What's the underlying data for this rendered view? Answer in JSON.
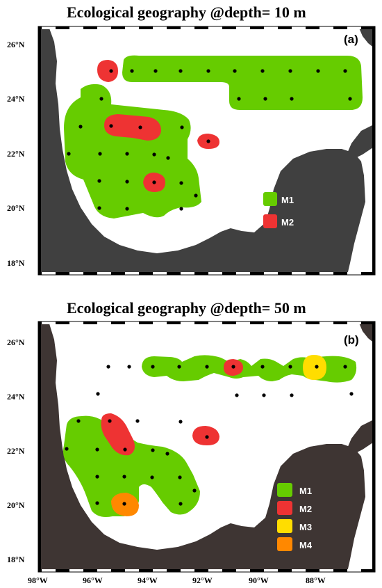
{
  "figure": {
    "panels": [
      {
        "id": "a",
        "title": "Ecological geography @depth= 10 m",
        "panel_label": "(a)",
        "lat_ticks": [
          "26°N",
          "24°N",
          "22°N",
          "20°N",
          "18°N"
        ],
        "lon_ticks": [],
        "legend": [
          {
            "label": "M1",
            "color": "#66cc00"
          },
          {
            "label": "M2",
            "color": "#ee3333"
          }
        ]
      },
      {
        "id": "b",
        "title": "Ecological geography @depth= 50 m",
        "panel_label": "(b)",
        "lat_ticks": [
          "26°N",
          "24°N",
          "22°N",
          "20°N",
          "18°N"
        ],
        "lon_ticks": [
          "98°W",
          "96°W",
          "94°W",
          "92°W",
          "90°W",
          "88°W"
        ],
        "legend": [
          {
            "label": "M1",
            "color": "#66cc00"
          },
          {
            "label": "M2",
            "color": "#ee3333"
          },
          {
            "label": "M3",
            "color": "#ffdd00"
          },
          {
            "label": "M4",
            "color": "#ff8800"
          }
        ]
      }
    ],
    "colors": {
      "land_panel_a": "#404040",
      "land_panel_b": "#3e3533",
      "water": "#ffffff",
      "station": "#000000"
    }
  },
  "map_data": {
    "stations": [
      {
        "lon": -95.7,
        "lat": 25.0
      },
      {
        "lon": -94.8,
        "lat": 25.0
      },
      {
        "lon": -93.9,
        "lat": 25.0
      },
      {
        "lon": -92.9,
        "lat": 25.0
      },
      {
        "lon": -92.0,
        "lat": 25.0
      },
      {
        "lon": -91.0,
        "lat": 25.0
      },
      {
        "lon": -90.0,
        "lat": 25.0
      },
      {
        "lon": -89.0,
        "lat": 25.0
      },
      {
        "lon": -88.0,
        "lat": 25.0
      },
      {
        "lon": -87.0,
        "lat": 25.0
      },
      {
        "lon": -91.0,
        "lat": 24.0
      },
      {
        "lon": -90.0,
        "lat": 24.0
      },
      {
        "lon": -89.0,
        "lat": 24.0
      },
      {
        "lon": -86.8,
        "lat": 24.0
      },
      {
        "lon": -96.1,
        "lat": 24.0
      },
      {
        "lon": -97.0,
        "lat": 23.0
      },
      {
        "lon": -95.7,
        "lat": 23.0
      },
      {
        "lon": -94.4,
        "lat": 23.0
      },
      {
        "lon": -93.0,
        "lat": 23.0
      },
      {
        "lon": -92.0,
        "lat": 22.5
      },
      {
        "lon": -97.5,
        "lat": 22.0
      },
      {
        "lon": -96.1,
        "lat": 22.0
      },
      {
        "lon": -95.0,
        "lat": 22.0
      },
      {
        "lon": -94.0,
        "lat": 22.0
      },
      {
        "lon": -93.5,
        "lat": 21.85
      },
      {
        "lon": -96.0,
        "lat": 21.0
      },
      {
        "lon": -95.0,
        "lat": 21.0
      },
      {
        "lon": -94.0,
        "lat": 21.0
      },
      {
        "lon": -93.0,
        "lat": 21.0
      },
      {
        "lon": -92.5,
        "lat": 20.5
      },
      {
        "lon": -96.0,
        "lat": 20.0
      },
      {
        "lon": -95.0,
        "lat": 20.0
      },
      {
        "lon": -93.0,
        "lat": 20.0
      }
    ],
    "clusters_10m": {
      "M1": "green regions: northern zonal band 24–25.5°N (95.5°W–86.5°W) and western shelf 20–24.3°N (97.7°W–92.5°W)",
      "M2": "red patches: 25°N 95.7°W; 23°N 95.7–94.4°W; 22.5°N 92°W; 21°N 94°W"
    },
    "clusters_50m": {
      "M1": "green regions: band ~25°N (94.2°W–86.5°W) and western shelf 20–23.5°N (97.8°W–92.5°W)",
      "M2": "red patches: 25°N 91°W; 22.9°N 95.6–95°W; 22.5°N 92°W",
      "M3": "yellow patch: 25°N 88°W",
      "M4": "orange patch: 20°N 95°W"
    }
  }
}
